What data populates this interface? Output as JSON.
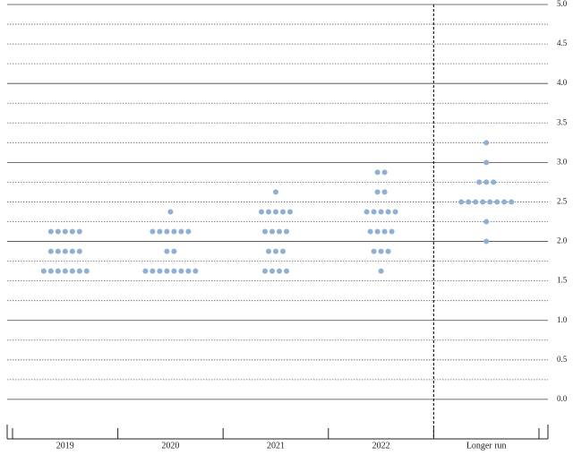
{
  "chart_data": {
    "type": "dot",
    "categories": [
      "2019",
      "2020",
      "2021",
      "2022",
      "Longer run"
    ],
    "dots": [
      [
        {
          "value": 2.125,
          "count": 5
        },
        {
          "value": 1.875,
          "count": 5
        },
        {
          "value": 1.625,
          "count": 7
        }
      ],
      [
        {
          "value": 2.375,
          "count": 1
        },
        {
          "value": 2.125,
          "count": 6
        },
        {
          "value": 1.875,
          "count": 2
        },
        {
          "value": 1.625,
          "count": 8
        }
      ],
      [
        {
          "value": 2.625,
          "count": 1
        },
        {
          "value": 2.375,
          "count": 5
        },
        {
          "value": 2.125,
          "count": 4
        },
        {
          "value": 1.875,
          "count": 3
        },
        {
          "value": 1.625,
          "count": 4
        }
      ],
      [
        {
          "value": 2.875,
          "count": 2
        },
        {
          "value": 2.625,
          "count": 2
        },
        {
          "value": 2.375,
          "count": 5
        },
        {
          "value": 2.125,
          "count": 4
        },
        {
          "value": 1.875,
          "count": 3
        },
        {
          "value": 1.625,
          "count": 1
        }
      ],
      [
        {
          "value": 3.25,
          "count": 1
        },
        {
          "value": 3.0,
          "count": 1
        },
        {
          "value": 2.75,
          "count": 3
        },
        {
          "value": 2.5,
          "count": 8
        },
        {
          "value": 2.25,
          "count": 1
        },
        {
          "value": 2.0,
          "count": 1
        }
      ]
    ],
    "color": "#8fb0d2",
    "ylim": [
      -0.5,
      5
    ],
    "yticks": [
      {
        "value": 0,
        "label": "0.0"
      },
      0.5,
      {
        "value": 1,
        "label": "1.0"
      },
      1.5,
      {
        "value": 2,
        "label": "2.0"
      },
      2.5,
      {
        "value": 3,
        "label": "3.0"
      },
      3.5,
      {
        "value": 4,
        "label": "4.0"
      },
      4.5,
      {
        "value": 5,
        "label": "5.0"
      }
    ],
    "y_minor_ticks": [
      0.25,
      0.75,
      1.25,
      1.75,
      2.25,
      2.75,
      3.25,
      3.75,
      4.25,
      4.75
    ],
    "projection_divider_after": 3,
    "grid": true
  }
}
